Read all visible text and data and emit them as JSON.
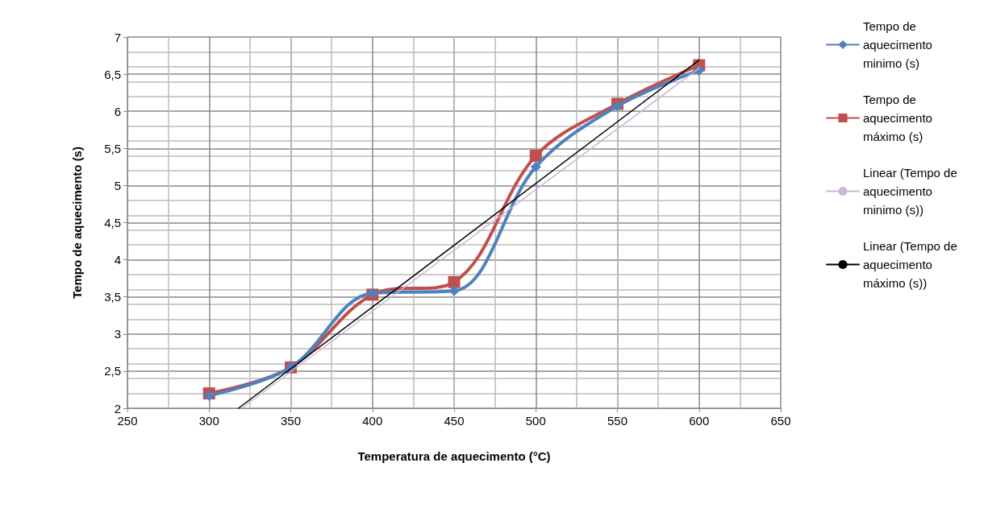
{
  "chart_data": {
    "type": "line",
    "xlabel": "Temperatura de aquecimento (°C)",
    "ylabel": "Tempo de aquecimento (s)",
    "x": [
      300,
      350,
      400,
      450,
      500,
      550,
      600
    ],
    "series": [
      {
        "name": "Tempo de aquecimento minimo (s)",
        "color": "#4f81bd",
        "marker": "diamond",
        "values": [
          2.17,
          2.55,
          3.55,
          3.58,
          5.25,
          6.07,
          6.55
        ]
      },
      {
        "name": "Tempo de aquecimento máximo (s)",
        "color": "#c0504d",
        "marker": "square",
        "values": [
          2.2,
          2.55,
          3.53,
          3.7,
          5.4,
          6.1,
          6.62
        ]
      },
      {
        "name": "Linear (Tempo de aquecimento minimo (s))",
        "color": "#cdb4d8",
        "marker": "none",
        "x": [
          320,
          600
        ],
        "values": [
          2.0,
          6.58
        ]
      },
      {
        "name": "Linear (Tempo de aquecimento máximo (s))",
        "color": "#000000",
        "marker": "none",
        "x": [
          318,
          600
        ],
        "values": [
          2.0,
          6.69
        ]
      }
    ],
    "xlim": [
      250,
      650
    ],
    "xticks": [
      250,
      300,
      350,
      400,
      450,
      500,
      550,
      600,
      650
    ],
    "ylim": [
      2,
      7
    ],
    "yticks": [
      2,
      {
        "value": 2.5,
        "label": "2,5"
      },
      3,
      {
        "value": 3.5,
        "label": "3,5"
      },
      4,
      {
        "value": 4.5,
        "label": "4,5"
      },
      5,
      {
        "value": 5.5,
        "label": "5,5"
      },
      6,
      {
        "value": 6.5,
        "label": "6,5"
      },
      7
    ],
    "grid": true,
    "legend": "right"
  }
}
